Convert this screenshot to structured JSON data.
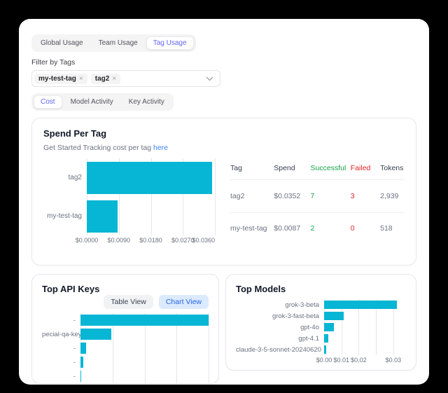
{
  "top_tabs": {
    "items": [
      {
        "label": "Global Usage",
        "active": false
      },
      {
        "label": "Team Usage",
        "active": false
      },
      {
        "label": "Tag Usage",
        "active": true
      }
    ]
  },
  "filter": {
    "label": "Filter by Tags",
    "chips": [
      {
        "text": "my-test-tag",
        "remove_icon": "x-icon"
      },
      {
        "text": "tag2",
        "remove_icon": "x-icon"
      }
    ],
    "chevron_icon": "chevron-down-icon"
  },
  "view_tabs": {
    "items": [
      {
        "label": "Cost",
        "active": true
      },
      {
        "label": "Model Activity",
        "active": false
      },
      {
        "label": "Key Activity",
        "active": false
      }
    ]
  },
  "spend_card": {
    "title": "Spend Per Tag",
    "subtitle_prefix": "Get Started Tracking cost per tag ",
    "subtitle_link": "here",
    "table": {
      "columns": [
        "Tag",
        "Spend",
        "Successful",
        "Failed",
        "Tokens"
      ],
      "rows": [
        {
          "tag": "tag2",
          "spend": "$0.0352",
          "successful": "7",
          "failed": "3",
          "tokens": "2,939"
        },
        {
          "tag": "my-test-tag",
          "spend": "$0.0087",
          "successful": "2",
          "failed": "0",
          "tokens": "518"
        }
      ]
    }
  },
  "api_keys_card": {
    "title": "Top API Keys",
    "table_view_label": "Table View",
    "chart_view_label": "Chart View"
  },
  "models_card": {
    "title": "Top Models"
  },
  "chart_data": [
    {
      "id": "spend_per_tag",
      "type": "bar",
      "orientation": "horizontal",
      "title": "Spend Per Tag",
      "categories": [
        "tag2",
        "my-test-tag"
      ],
      "values": [
        0.0352,
        0.0087
      ],
      "xlim": [
        0,
        0.036
      ],
      "xticks": [
        {
          "label": "$0.0000",
          "value": 0
        },
        {
          "label": "$0.0090",
          "value": 0.009
        },
        {
          "label": "$0.0180",
          "value": 0.018
        },
        {
          "label": "$0.0270",
          "value": 0.027
        },
        {
          "label": "$0.0360",
          "value": 0.036
        }
      ],
      "bar_color": "#06b6d4",
      "grid": true,
      "legend": false
    },
    {
      "id": "top_api_keys",
      "type": "bar",
      "orientation": "horizontal",
      "title": "Top API Keys",
      "categories": [
        "-",
        "pecial-qa-key",
        "-",
        "-",
        "-"
      ],
      "values": [
        0.0298,
        0.0071,
        0.0013,
        0.0006,
        3e-05
      ],
      "xlim": [
        0,
        0.0298
      ],
      "xticks": [
        {
          "label": "",
          "value": 0
        },
        {
          "label": "",
          "value": 0.00745
        },
        {
          "label": "",
          "value": 0.0149
        },
        {
          "label": "",
          "value": 0.02235
        },
        {
          "label": "",
          "value": 0.0298
        }
      ],
      "bar_color": "#06b6d4",
      "grid": true,
      "legend": false,
      "note": "x-axis labels clipped by card edge"
    },
    {
      "id": "top_models",
      "type": "bar",
      "orientation": "horizontal",
      "title": "Top Models",
      "categories": [
        "grok-3-beta",
        "grok-3-fast-beta",
        "gpt-4o",
        "gpt-4.1",
        "claude-3-5-sonnet-20240620"
      ],
      "values": [
        0.0315,
        0.0086,
        0.0041,
        0.0019,
        0.0008
      ],
      "xlim": [
        0,
        0.0355
      ],
      "xticks": [
        {
          "label": "$0.00",
          "value": 0
        },
        {
          "label": "$0.01",
          "value": 0.0075
        },
        {
          "label": "$0.02",
          "value": 0.015
        },
        {
          "label": "",
          "value": 0.0225
        },
        {
          "label": "$0.03",
          "value": 0.03
        }
      ],
      "bar_color": "#06b6d4",
      "grid": true,
      "legend": false
    }
  ],
  "colors": {
    "accent_indigo": "#6366f1",
    "bar_cyan": "#06b6d4",
    "success_green": "#16a34a",
    "fail_red": "#dc2626",
    "link_blue": "#3b82f6"
  }
}
